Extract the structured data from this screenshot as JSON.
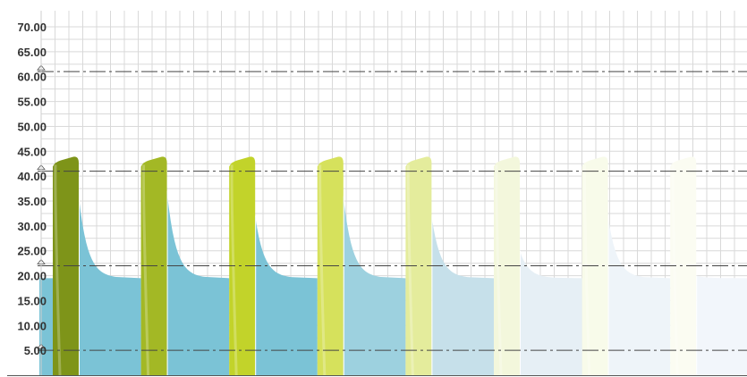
{
  "chart_data": {
    "type": "area",
    "title": "",
    "xlabel": "",
    "ylabel": "",
    "ylim": [
      0,
      72
    ],
    "yticks": [
      "5.00",
      "10.00",
      "15.00",
      "20.00",
      "25.00",
      "30.00",
      "35.00",
      "40.00",
      "45.00",
      "50.00",
      "55.00",
      "60.00",
      "65.00",
      "70.00"
    ],
    "grid": true,
    "reference_lines": [
      5,
      22,
      41,
      61
    ],
    "cycles": [
      {
        "peak": 43,
        "decay_start": 36,
        "base": 19.5,
        "pulse_color": "#7e9419",
        "decay_color": "#7bc3d6"
      },
      {
        "peak": 43,
        "decay_start": 37,
        "base": 19.5,
        "pulse_color": "#a3b825",
        "decay_color": "#7bc3d6"
      },
      {
        "peak": 43,
        "decay_start": 32,
        "base": 19.5,
        "pulse_color": "#c2d32a",
        "decay_color": "#7bc3d6"
      },
      {
        "peak": 43,
        "decay_start": 36,
        "base": 19.5,
        "pulse_color": "#d6e15c",
        "decay_color": "#9dd1df"
      },
      {
        "peak": 43,
        "decay_start": 32,
        "base": 19.5,
        "pulse_color": "#e4ec9c",
        "decay_color": "#c6e0ea"
      },
      {
        "peak": 43,
        "decay_start": 25,
        "base": 19.5,
        "pulse_color": "#f3f7dc",
        "decay_color": "#e6eff5"
      },
      {
        "peak": 43,
        "decay_start": 32,
        "base": 19.5,
        "pulse_color": "#f8fbea",
        "decay_color": "#eef4f9"
      },
      {
        "peak": 43,
        "decay_start": 20,
        "base": 19.5,
        "pulse_color": "#fbfcf2",
        "decay_color": "#f2f6fb"
      }
    ],
    "initial_base": 19.5
  }
}
